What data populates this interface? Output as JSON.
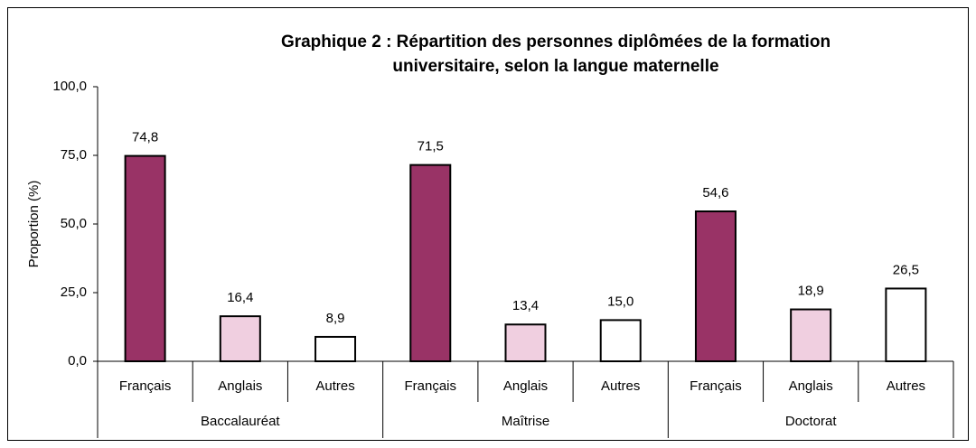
{
  "chart_data": {
    "type": "bar",
    "title": [
      "Graphique 2 : Répartition des personnes diplômées de la formation",
      "universitaire, selon la langue maternelle"
    ],
    "ylabel": "Proportion (%)",
    "categories": [
      "Baccalauréat",
      "Maîtrise",
      "Doctorat"
    ],
    "series": [
      {
        "name": "Français",
        "color": "#993366",
        "values": [
          74.8,
          71.5,
          54.6
        ],
        "value_labels": [
          "74,8",
          "71,5",
          "54,6"
        ]
      },
      {
        "name": "Anglais",
        "color": "#f0cfe0",
        "values": [
          16.4,
          13.4,
          18.9
        ],
        "value_labels": [
          "16,4",
          "13,4",
          "18,9"
        ]
      },
      {
        "name": "Autres",
        "color": "#ffffff",
        "values": [
          8.9,
          15.0,
          26.5
        ],
        "value_labels": [
          "8,9",
          "15,0",
          "26,5"
        ]
      }
    ],
    "ylim": [
      0,
      100
    ],
    "yticks": [
      {
        "value": 0,
        "label": "0,0"
      },
      {
        "value": 25,
        "label": "25,0"
      },
      {
        "value": 50,
        "label": "50,0"
      },
      {
        "value": 75,
        "label": "75,0"
      },
      {
        "value": 100,
        "label": "100,0"
      }
    ],
    "grid": false
  }
}
